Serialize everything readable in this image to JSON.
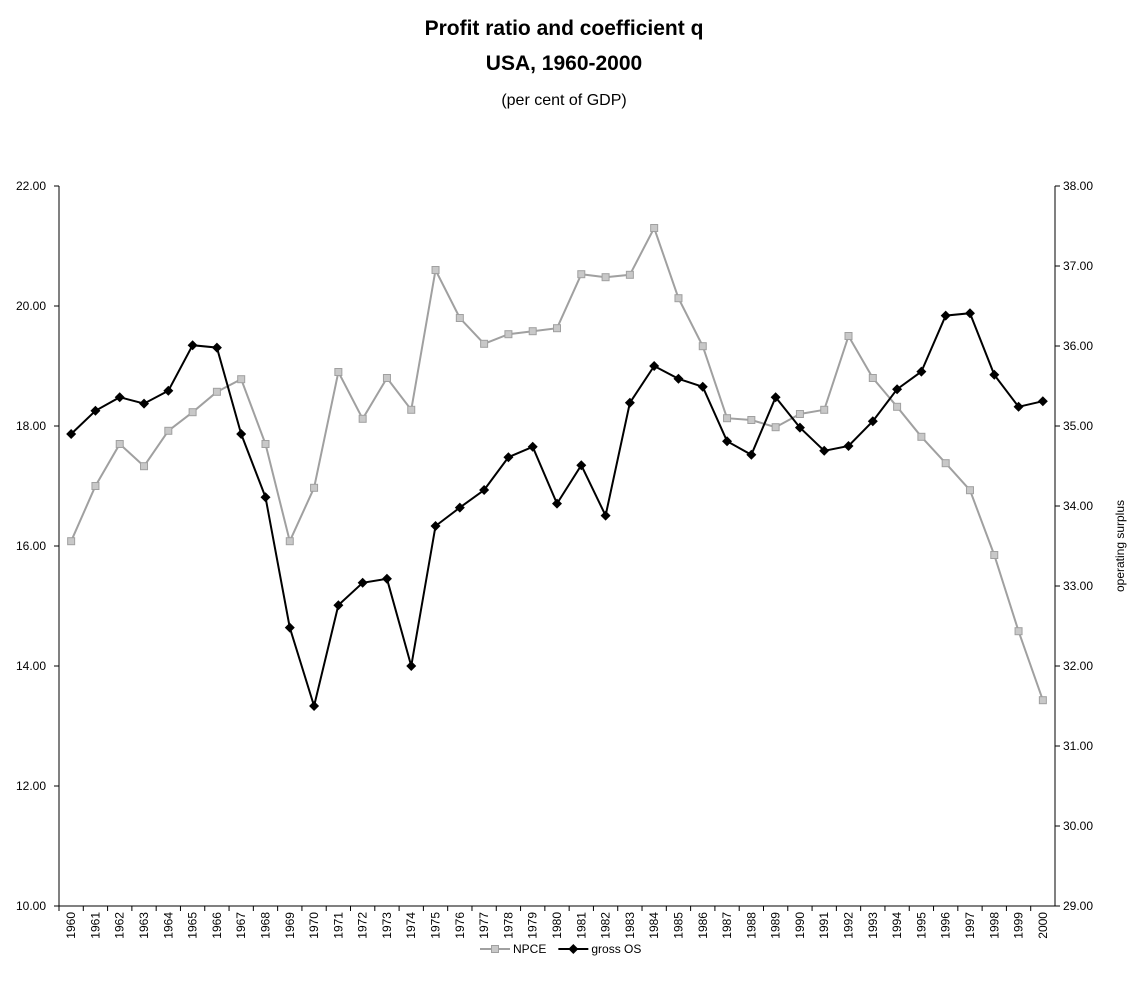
{
  "chart_data": {
    "type": "line",
    "title": [
      "Profit ratio and coefficient q",
      "USA, 1960-2000"
    ],
    "subtitle": "(per cent of GDP)",
    "y2_label": "operating surplus",
    "categories": [
      "1960",
      "1961",
      "1962",
      "1963",
      "1964",
      "1965",
      "1966",
      "1967",
      "1968",
      "1969",
      "1970",
      "1971",
      "1972",
      "1973",
      "1974",
      "1975",
      "1976",
      "1977",
      "1978",
      "1979",
      "1980",
      "1981",
      "1982",
      "1983",
      "1984",
      "1985",
      "1986",
      "1987",
      "1988",
      "1989",
      "1990",
      "1991",
      "1992",
      "1993",
      "1994",
      "1995",
      "1996",
      "1997",
      "1998",
      "1999",
      "2000"
    ],
    "ylim": [
      10,
      22
    ],
    "yticks": [
      {
        "value": 10,
        "label": "10.00"
      },
      {
        "value": 12,
        "label": "12.00"
      },
      {
        "value": 14,
        "label": "14.00"
      },
      {
        "value": 16,
        "label": "16.00"
      },
      {
        "value": 18,
        "label": "18.00"
      },
      {
        "value": 20,
        "label": "20.00"
      },
      {
        "value": 22,
        "label": "22.00"
      }
    ],
    "y2lim": [
      29,
      38
    ],
    "y2ticks": [
      {
        "value": 29,
        "label": "29.00"
      },
      {
        "value": 30,
        "label": "30.00"
      },
      {
        "value": 31,
        "label": "31.00"
      },
      {
        "value": 32,
        "label": "32.00"
      },
      {
        "value": 33,
        "label": "33.00"
      },
      {
        "value": 34,
        "label": "34.00"
      },
      {
        "value": 35,
        "label": "35.00"
      },
      {
        "value": 36,
        "label": "36.00"
      },
      {
        "value": 37,
        "label": "37.00"
      },
      {
        "value": 38,
        "label": "38.00"
      }
    ],
    "grid": false,
    "legend": "bottom",
    "series": [
      {
        "name": "NPCE",
        "color": "#a0a0a0",
        "marker": "square",
        "values": [
          16.08,
          17.0,
          17.7,
          17.33,
          17.92,
          18.23,
          18.57,
          18.78,
          17.7,
          16.08,
          16.97,
          18.9,
          18.12,
          18.8,
          18.27,
          20.6,
          19.8,
          19.37,
          19.53,
          19.58,
          19.63,
          20.53,
          20.48,
          20.52,
          21.3,
          20.13,
          19.33,
          18.13,
          18.1,
          17.98,
          18.2,
          18.27,
          19.5,
          18.8,
          18.32,
          17.82,
          17.38,
          16.93,
          15.85,
          14.58,
          13.43
        ]
      },
      {
        "name": "gross OS",
        "color": "#000000",
        "marker": "diamond",
        "axis": "y2",
        "values": [
          34.9,
          35.19,
          35.36,
          35.28,
          35.44,
          36.01,
          35.98,
          34.9,
          34.11,
          32.48,
          31.5,
          32.76,
          33.04,
          33.09,
          32.0,
          33.75,
          33.98,
          34.2,
          34.61,
          34.74,
          34.03,
          34.51,
          33.88,
          35.29,
          35.75,
          35.59,
          35.49,
          34.81,
          34.64,
          35.36,
          34.98,
          34.69,
          34.75,
          35.06,
          35.46,
          35.68,
          36.38,
          36.41,
          35.64,
          35.24,
          35.31
        ]
      }
    ]
  }
}
